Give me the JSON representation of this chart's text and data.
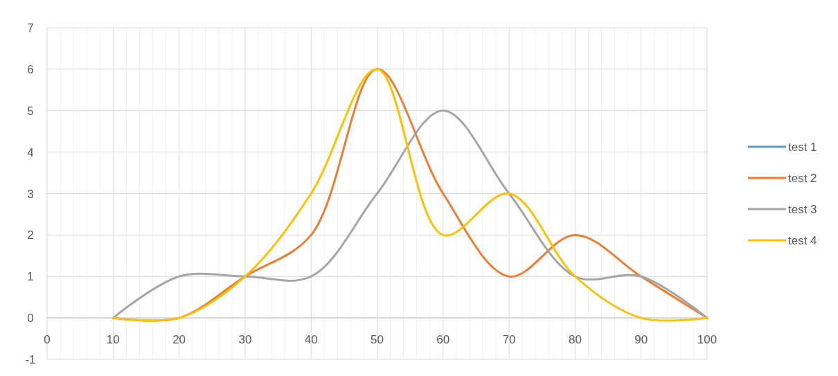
{
  "chart_data": {
    "type": "line",
    "x": [
      10,
      20,
      30,
      40,
      50,
      60,
      70,
      80,
      90,
      100
    ],
    "series": [
      {
        "name": "test 1",
        "color": "#5b9bd5",
        "values": [
          null,
          null,
          null,
          null,
          null,
          null,
          null,
          null,
          null,
          null
        ]
      },
      {
        "name": "test 2",
        "color": "#ed7d31",
        "values": [
          0,
          0,
          1,
          2,
          6,
          3,
          1,
          2,
          1,
          0
        ]
      },
      {
        "name": "test 3",
        "color": "#a5a5a5",
        "values": [
          0,
          1,
          1,
          1,
          3,
          5,
          3,
          1,
          1,
          0
        ]
      },
      {
        "name": "test 4",
        "color": "#ffc000",
        "values": [
          0,
          0,
          1,
          3,
          6,
          2,
          3,
          1,
          0,
          0
        ]
      }
    ],
    "xlim": [
      0,
      100
    ],
    "xticks": [
      0,
      10,
      20,
      30,
      40,
      50,
      60,
      70,
      80,
      90,
      100
    ],
    "ylim": [
      -1,
      7
    ],
    "yticks": [
      -1,
      0,
      1,
      2,
      3,
      4,
      5,
      6,
      7
    ],
    "grid": true,
    "legend": "right",
    "marker": "none",
    "line_style": "solid"
  }
}
